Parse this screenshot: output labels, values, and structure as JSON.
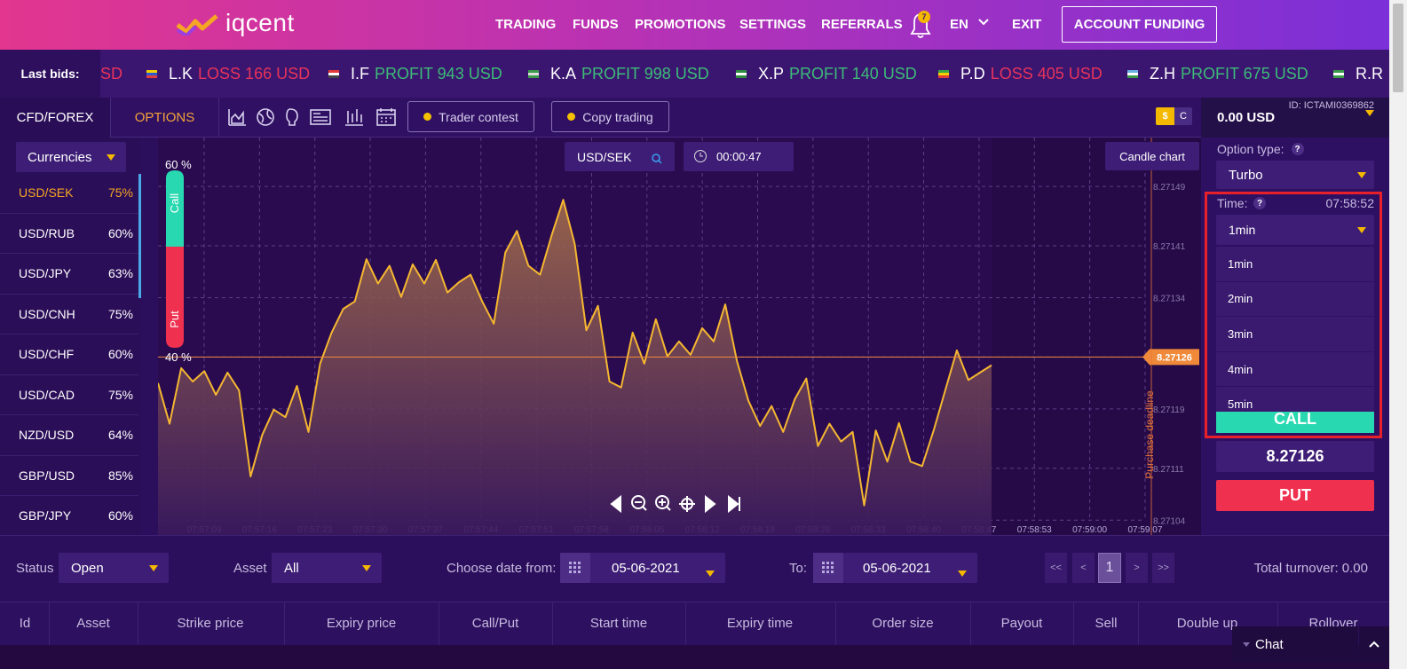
{
  "header": {
    "logo": "iqcent",
    "nav": [
      "TRADING",
      "FUNDS",
      "PROMOTIONS",
      "SETTINGS",
      "REFERRALS"
    ],
    "notifications": "7",
    "language": "EN",
    "exit": "EXIT",
    "funding_button": "ACCOUNT FUNDING"
  },
  "ticker": {
    "label": "Last bids:",
    "items": [
      {
        "text": "SD",
        "color": "#e8335a"
      },
      {
        "name": "L.K",
        "text": "LOSS 166 USD",
        "color": "#e8335a"
      },
      {
        "name": "I.F",
        "text": "PROFIT 943 USD",
        "color": "#3dbb78"
      },
      {
        "name": "K.A",
        "text": "PROFIT 998 USD",
        "color": "#3dbb78"
      },
      {
        "name": "X.P",
        "text": "PROFIT 140 USD",
        "color": "#3dbb78"
      },
      {
        "name": "P.D",
        "text": "LOSS 405 USD",
        "color": "#e8335a"
      },
      {
        "name": "Z.H",
        "text": "PROFIT 675 USD",
        "color": "#3dbb78"
      },
      {
        "name": "R.R"
      }
    ]
  },
  "toolbar": {
    "tabs": [
      "CFD/FOREX",
      "OPTIONS"
    ],
    "buttons": [
      "Trader contest",
      "Copy trading"
    ],
    "currency_toggle": [
      "$",
      "C"
    ]
  },
  "account": {
    "id": "ID: ICTAMI0369862",
    "balance": "0.00 USD"
  },
  "assets": {
    "filter": "Currencies",
    "rows": [
      {
        "pair": "USD/SEK",
        "payout": "75%"
      },
      {
        "pair": "USD/RUB",
        "payout": "60%"
      },
      {
        "pair": "USD/JPY",
        "payout": "63%"
      },
      {
        "pair": "USD/CNH",
        "payout": "75%"
      },
      {
        "pair": "USD/CHF",
        "payout": "60%"
      },
      {
        "pair": "USD/CAD",
        "payout": "75%"
      },
      {
        "pair": "NZD/USD",
        "payout": "64%"
      },
      {
        "pair": "GBP/USD",
        "payout": "85%"
      },
      {
        "pair": "GBP/JPY",
        "payout": "60%"
      }
    ]
  },
  "chart": {
    "type": "line",
    "symbol": "USD/SEK",
    "timer": "00:00:47",
    "mode_button": "Candle chart",
    "call_percent": "60 %",
    "put_percent": "40 %",
    "call_label": "Call",
    "put_label": "Put",
    "deadline_label": "Purchase deadline",
    "color": "#f5b731",
    "current_price": 8.27126,
    "ylim": [
      8.27102,
      8.27155
    ],
    "yticks": [
      8.27149,
      8.27141,
      8.27134,
      8.27126,
      8.27119,
      8.27111,
      8.27104
    ],
    "xticks": [
      "07:57:09",
      "07:57:16",
      "07:57:23",
      "07:57:30",
      "07:57:37",
      "07:57:44",
      "07:57:51",
      "07:57:58",
      "07:58:05",
      "07:58:12",
      "07:58:19",
      "07:58:26",
      "07:58:33",
      "07:58:40",
      "07:58:47",
      "07:58:53",
      "07:59:00",
      "07:59:07"
    ],
    "values": [
      8.271225,
      8.27117,
      8.271245,
      8.271227,
      8.271241,
      8.271209,
      8.271239,
      8.271215,
      8.271099,
      8.271155,
      8.271189,
      8.271179,
      8.271221,
      8.271159,
      8.271251,
      8.271293,
      8.271325,
      8.271335,
      8.271392,
      8.271359,
      8.271383,
      8.271341,
      8.271385,
      8.271359,
      8.271391,
      8.271347,
      8.271361,
      8.271371,
      8.271335,
      8.271305,
      8.271401,
      8.27143,
      8.271383,
      8.271371,
      8.271424,
      8.271472,
      8.271412,
      8.271296,
      8.271329,
      8.271227,
      8.271219,
      8.271293,
      8.271251,
      8.271311,
      8.271261,
      8.271281,
      8.271263,
      8.271299,
      8.271281,
      8.271331,
      8.271255,
      8.271201,
      8.271167,
      8.271194,
      8.271159,
      8.271203,
      8.271231,
      8.27114,
      8.27117,
      8.271146,
      8.271159,
      8.27106,
      8.271161,
      8.271119,
      8.271171,
      8.271119,
      8.271113,
      8.271161,
      8.271215,
      8.271269,
      8.271229,
      8.271239,
      8.271249
    ]
  },
  "option_panel": {
    "type_label": "Option type:",
    "help": "?",
    "type_value": "Turbo",
    "time_label": "Time:",
    "clock": "07:58:52",
    "time_value": "1min",
    "time_options": [
      "1min",
      "2min",
      "3min",
      "4min",
      "5min"
    ],
    "call_button": "CALL",
    "price": "8.27126",
    "put_button": "PUT"
  },
  "filters": {
    "status_label": "Status",
    "status_value": "Open",
    "asset_label": "Asset",
    "asset_value": "All",
    "date_from_label": "Choose date from:",
    "date_from": "05-06-2021",
    "date_to_label": "To:",
    "date_to": "05-06-2021",
    "pagination": [
      "<<",
      "<",
      "1",
      ">",
      ">>"
    ],
    "total": "Total turnover: 0.00"
  },
  "table": {
    "columns": [
      "Id",
      "Asset",
      "Strike price",
      "Expiry price",
      "Call/Put",
      "Start time",
      "Expiry time",
      "Order size",
      "Payout",
      "Sell",
      "Double up",
      "Rollover"
    ]
  },
  "chat": "Chat"
}
